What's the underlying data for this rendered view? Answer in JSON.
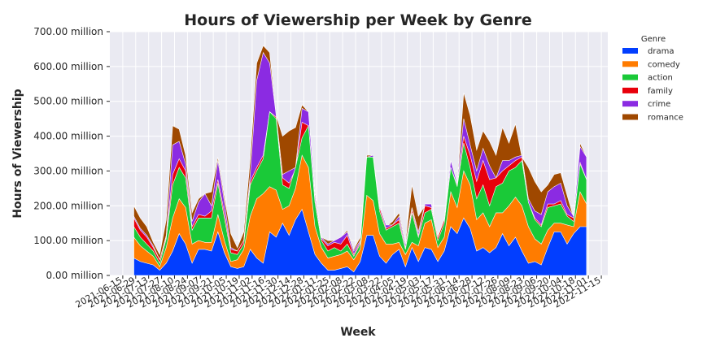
{
  "chart_data": {
    "type": "area",
    "title": "Hours of Viewership per Week by Genre",
    "xlabel": "Week",
    "ylabel": "Hours of Viewership",
    "ylim": [
      0,
      700
    ],
    "y_unit_suffix": " million",
    "y_ticks": [
      "0.00 million",
      "100.00 million",
      "200.00 million",
      "300.00 million",
      "400.00 million",
      "500.00 million",
      "600.00 million",
      "700.00 million"
    ],
    "x_ticks": [
      "2021-06-15",
      "2021-06-29",
      "2021-07-13",
      "2021-07-27",
      "2021-08-10",
      "2021-08-24",
      "2021-09-07",
      "2021-09-21",
      "2021-10-05",
      "2021-10-19",
      "2021-11-02",
      "2021-11-16",
      "2021-11-30",
      "2021-12-14",
      "2021-12-28",
      "2022-01-11",
      "2022-01-25",
      "2022-02-08",
      "2022-02-22",
      "2022-03-08",
      "2022-03-22",
      "2022-04-05",
      "2022-04-19",
      "2022-05-03",
      "2022-05-17",
      "2022-05-31",
      "2022-06-14",
      "2022-06-28",
      "2022-07-12",
      "2022-07-26",
      "2022-08-09",
      "2022-08-23",
      "2022-09-06",
      "2022-09-20",
      "2022-10-04",
      "2022-10-18",
      "2022-11-01",
      "2022-11-15"
    ],
    "x_start": "2021-06-15",
    "x_end": "2022-11-15",
    "legend_title": "Genre",
    "legend_position": "outside-right",
    "grid": true,
    "x_dates": [
      "2021-06-27",
      "2021-07-04",
      "2021-07-11",
      "2021-07-18",
      "2021-07-25",
      "2021-08-01",
      "2021-08-08",
      "2021-08-15",
      "2021-08-22",
      "2021-08-29",
      "2021-09-05",
      "2021-09-12",
      "2021-09-19",
      "2021-09-26",
      "2021-10-03",
      "2021-10-10",
      "2021-10-17",
      "2021-10-24",
      "2021-10-31",
      "2021-11-07",
      "2021-11-14",
      "2021-11-21",
      "2021-11-28",
      "2021-12-05",
      "2021-12-12",
      "2021-12-19",
      "2021-12-26",
      "2022-01-02",
      "2022-01-09",
      "2022-01-16",
      "2022-01-23",
      "2022-01-30",
      "2022-02-06",
      "2022-02-13",
      "2022-02-20",
      "2022-02-27",
      "2022-03-06",
      "2022-03-13",
      "2022-03-20",
      "2022-03-27",
      "2022-04-03",
      "2022-04-10",
      "2022-04-17",
      "2022-04-24",
      "2022-05-01",
      "2022-05-08",
      "2022-05-15",
      "2022-05-22",
      "2022-05-29",
      "2022-06-05",
      "2022-06-12",
      "2022-06-19",
      "2022-06-26",
      "2022-07-03",
      "2022-07-10",
      "2022-07-17",
      "2022-07-24",
      "2022-07-31",
      "2022-08-07",
      "2022-08-14",
      "2022-08-21",
      "2022-08-28",
      "2022-09-04",
      "2022-09-11",
      "2022-09-18",
      "2022-09-25",
      "2022-10-02",
      "2022-10-09",
      "2022-10-16",
      "2022-10-23",
      "2022-10-30"
    ],
    "series": [
      {
        "name": "drama",
        "color": "#023eff",
        "values": [
          50,
          40,
          35,
          30,
          15,
          35,
          70,
          120,
          90,
          35,
          75,
          75,
          70,
          125,
          65,
          25,
          20,
          25,
          75,
          50,
          35,
          125,
          110,
          150,
          115,
          160,
          190,
          125,
          60,
          35,
          15,
          15,
          20,
          25,
          10,
          40,
          115,
          115,
          55,
          35,
          60,
          75,
          25,
          80,
          40,
          80,
          75,
          40,
          70,
          140,
          120,
          165,
          135,
          70,
          80,
          65,
          80,
          120,
          85,
          110,
          70,
          35,
          40,
          30,
          80,
          125,
          125,
          90,
          120,
          140,
          140
        ]
      },
      {
        "name": "comedy",
        "color": "#ff7c00",
        "values": [
          110,
          85,
          70,
          55,
          25,
          80,
          165,
          220,
          195,
          90,
          100,
          95,
          95,
          175,
          100,
          40,
          45,
          75,
          170,
          220,
          235,
          255,
          245,
          190,
          200,
          250,
          345,
          310,
          140,
          80,
          50,
          55,
          60,
          70,
          45,
          75,
          230,
          215,
          120,
          90,
          90,
          95,
          60,
          95,
          85,
          150,
          160,
          80,
          110,
          240,
          195,
          300,
          260,
          160,
          180,
          140,
          180,
          180,
          200,
          225,
          200,
          140,
          105,
          90,
          130,
          150,
          150,
          145,
          140,
          240,
          205
        ]
      },
      {
        "name": "action",
        "color": "#1ac938",
        "values": [
          140,
          110,
          90,
          70,
          35,
          105,
          260,
          310,
          280,
          130,
          165,
          165,
          165,
          265,
          165,
          65,
          60,
          90,
          260,
          300,
          335,
          470,
          450,
          260,
          250,
          310,
          395,
          430,
          210,
          100,
          70,
          80,
          70,
          90,
          55,
          90,
          340,
          340,
          185,
          130,
          140,
          150,
          75,
          180,
          110,
          180,
          190,
          100,
          150,
          310,
          255,
          380,
          310,
          220,
          260,
          200,
          255,
          265,
          300,
          310,
          330,
          210,
          160,
          140,
          195,
          200,
          205,
          170,
          155,
          320,
          275
        ]
      },
      {
        "name": "family",
        "color": "#e8000b",
        "values": [
          165,
          130,
          110,
          80,
          45,
          110,
          290,
          335,
          300,
          140,
          175,
          170,
          185,
          275,
          180,
          75,
          70,
          100,
          270,
          310,
          345,
          470,
          455,
          280,
          265,
          305,
          440,
          430,
          220,
          105,
          85,
          95,
          90,
          115,
          60,
          95,
          340,
          340,
          195,
          135,
          145,
          160,
          80,
          190,
          115,
          200,
          195,
          110,
          160,
          310,
          260,
          400,
          345,
          270,
          330,
          275,
          280,
          300,
          315,
          330,
          340,
          210,
          165,
          145,
          205,
          205,
          215,
          175,
          165,
          325,
          275
        ]
      },
      {
        "name": "crime",
        "color": "#8b2be2",
        "values": [
          170,
          135,
          115,
          85,
          45,
          115,
          375,
          385,
          320,
          155,
          210,
          235,
          200,
          330,
          210,
          80,
          70,
          100,
          290,
          560,
          640,
          610,
          460,
          290,
          300,
          310,
          480,
          470,
          235,
          110,
          90,
          100,
          110,
          125,
          70,
          100,
          340,
          345,
          200,
          145,
          145,
          170,
          90,
          195,
          125,
          205,
          205,
          105,
          160,
          330,
          265,
          450,
          375,
          300,
          365,
          315,
          280,
          330,
          330,
          340,
          345,
          220,
          185,
          175,
          240,
          255,
          265,
          200,
          170,
          370,
          340
        ]
      },
      {
        "name": "romance",
        "color": "#9f4800",
        "values": [
          200,
          165,
          140,
          95,
          60,
          160,
          430,
          420,
          345,
          180,
          220,
          235,
          240,
          340,
          225,
          120,
          80,
          125,
          335,
          610,
          660,
          640,
          460,
          400,
          415,
          425,
          490,
          470,
          245,
          110,
          100,
          100,
          110,
          130,
          75,
          110,
          345,
          345,
          200,
          140,
          155,
          180,
          95,
          260,
          170,
          200,
          200,
          105,
          160,
          330,
          265,
          525,
          460,
          360,
          415,
          385,
          345,
          425,
          380,
          435,
          340,
          310,
          270,
          240,
          260,
          290,
          295,
          230,
          165,
          380,
          340
        ]
      }
    ]
  }
}
